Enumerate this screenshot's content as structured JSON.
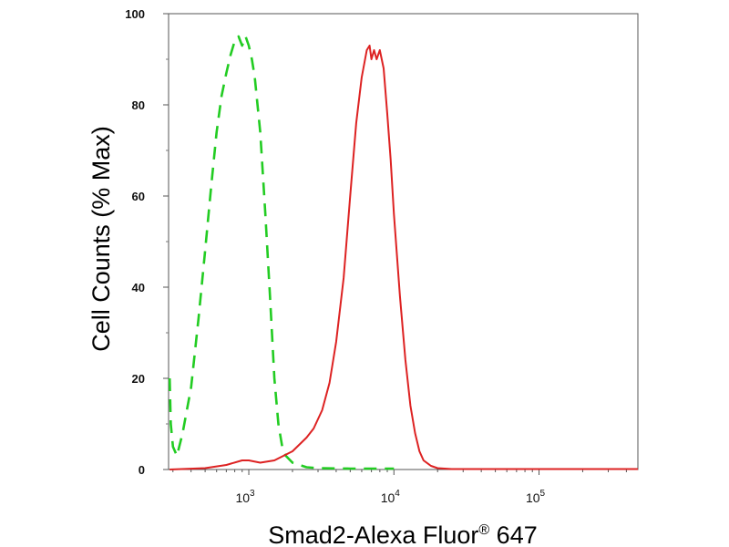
{
  "chart_data": {
    "type": "line",
    "title": "",
    "xlabel": "Smad2-Alexa Fluor",
    "xlabel_mark": "®",
    "xlabel_suffix": " 647",
    "ylabel": "Cell Counts (% Max)",
    "x_scale": "log",
    "xlim": [
      280,
      480000
    ],
    "ylim": [
      0,
      100
    ],
    "y_ticks": [
      {
        "value": 0,
        "label": "0"
      },
      {
        "value": 20,
        "label": "20"
      },
      {
        "value": 40,
        "label": "40"
      },
      {
        "value": 60,
        "label": "60"
      },
      {
        "value": 80,
        "label": "80"
      },
      {
        "value": 100,
        "label": "100"
      }
    ],
    "x_ticks": [
      {
        "value": 1000,
        "base": "10",
        "exp": "3"
      },
      {
        "value": 10000,
        "base": "10",
        "exp": "4"
      },
      {
        "value": 100000,
        "base": "10",
        "exp": "5"
      }
    ],
    "grid": false,
    "series": [
      {
        "color": "#22cc22",
        "dash": true,
        "x": [
          285,
          290,
          300,
          320,
          350,
          400,
          450,
          500,
          550,
          600,
          650,
          700,
          750,
          800,
          850,
          900,
          950,
          1000,
          1050,
          1100,
          1200,
          1300,
          1400,
          1500,
          1600,
          1700,
          1800,
          2000,
          2500,
          3000,
          5000,
          8000,
          10000
        ],
        "y": [
          20,
          10,
          5,
          3,
          8,
          18,
          33,
          48,
          62,
          74,
          82,
          87,
          91,
          94,
          95,
          93,
          95,
          93,
          90,
          86,
          74,
          56,
          38,
          20,
          10,
          5,
          3,
          1.5,
          0.5,
          0.3,
          0.2,
          0.2,
          0.2
        ]
      },
      {
        "color": "#dd2222",
        "dash": false,
        "x": [
          285,
          500,
          700,
          900,
          1000,
          1200,
          1500,
          2000,
          2500,
          2800,
          3200,
          3600,
          4000,
          4500,
          5000,
          5500,
          6000,
          6500,
          6800,
          7000,
          7300,
          7600,
          8000,
          8500,
          9000,
          9500,
          10000,
          11000,
          12000,
          13000,
          14000,
          15000,
          16000,
          18000,
          20000,
          25000,
          480000
        ],
        "y": [
          0,
          0.3,
          1,
          2,
          2,
          1.5,
          2,
          4,
          7,
          9,
          13,
          19,
          28,
          42,
          60,
          76,
          86,
          92,
          93,
          90,
          92,
          90,
          92,
          88,
          78,
          68,
          56,
          38,
          24,
          14,
          8,
          4,
          2,
          0.8,
          0.3,
          0.1,
          0.1
        ]
      }
    ]
  }
}
